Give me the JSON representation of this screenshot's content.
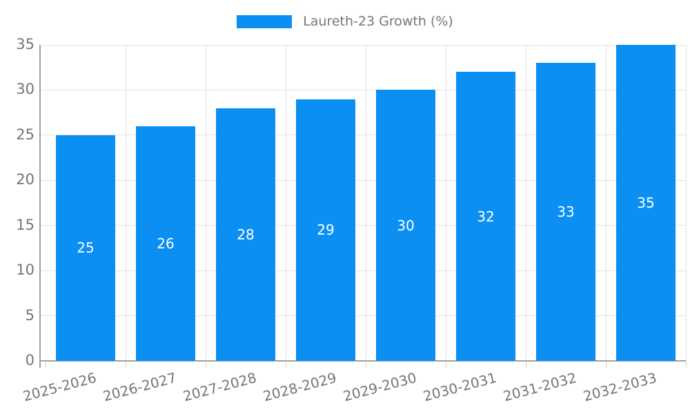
{
  "legend": {
    "label": "Laureth-23 Growth (%)"
  },
  "colors": {
    "bar": "#0b8ff2",
    "bar_label": "#ffffff",
    "grid": "#e3e3e3",
    "axis": "#a0a0a0",
    "text": "#757575",
    "background": "#ffffff"
  },
  "chart_data": {
    "type": "bar",
    "title": "Laureth-23 Growth (%)",
    "categories": [
      "2025-2026",
      "2026-2027",
      "2027-2028",
      "2028-2029",
      "2029-2030",
      "2030-2031",
      "2031-2032",
      "2032-2033"
    ],
    "values": [
      25,
      26,
      28,
      29,
      30,
      32,
      33,
      35
    ],
    "series": [
      {
        "name": "Laureth-23 Growth (%)",
        "values": [
          25,
          26,
          28,
          29,
          30,
          32,
          33,
          35
        ]
      }
    ],
    "xlabel": "",
    "ylabel": "",
    "ylim": [
      0,
      35
    ],
    "yticks": [
      0,
      5,
      10,
      15,
      20,
      25,
      30,
      35
    ],
    "grid": true,
    "legend_position": "top-center",
    "bar_label_position": "inside-center",
    "x_label_rotation_deg": -15
  }
}
